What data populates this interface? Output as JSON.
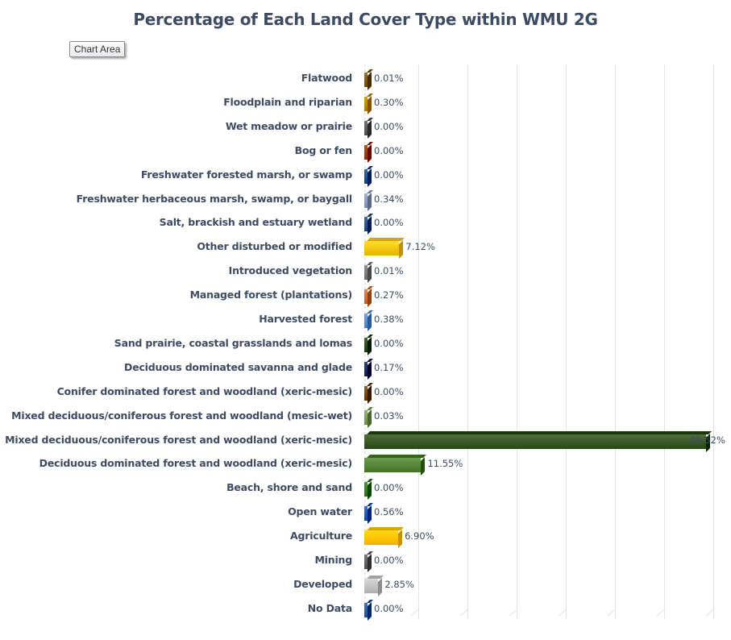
{
  "tooltip": "Chart Area",
  "chart_data": {
    "type": "bar",
    "orientation": "horizontal",
    "style": "3d-clustered-bar",
    "title": "Percentage of Each Land Cover Type within WMU 2G",
    "xlabel": "",
    "ylabel": "",
    "xlim": [
      0,
      70
    ],
    "grid": true,
    "legend": "none",
    "data_labels": true,
    "categories": [
      "Flatwood",
      "Floodplain and riparian",
      "Wet meadow or prairie",
      "Bog or fen",
      "Freshwater forested  marsh, or swamp",
      "Freshwater herbaceous marsh, swamp, or baygall",
      "Salt, brackish and estuary wetland",
      "Other disturbed or modified",
      "Introduced vegetation",
      "Managed forest (plantations)",
      "Harvested forest",
      "Sand prairie, coastal grasslands and lomas",
      "Deciduous dominated savanna and glade",
      "Conifer dominated forest and woodland (xeric-mesic)",
      "Mixed deciduous/coniferous forest and woodland (mesic-wet)",
      "Mixed deciduous/coniferous forest and woodland  (xeric-mesic)",
      "Deciduous dominated forest and woodland (xeric-mesic)",
      "Beach, shore and sand",
      "Open water",
      "Agriculture",
      "Mining",
      "Developed",
      "No Data"
    ],
    "values": [
      0.01,
      0.3,
      0.0,
      0.0,
      0.0,
      0.34,
      0.0,
      7.12,
      0.01,
      0.27,
      0.38,
      0.0,
      0.17,
      0.0,
      0.03,
      69.52,
      11.55,
      0.0,
      0.56,
      6.9,
      0.0,
      2.85,
      0.0
    ],
    "labels": [
      "0.01%",
      "0.30%",
      "0.00%",
      "0.00%",
      "0.00%",
      "0.34%",
      "0.00%",
      "7.12%",
      "0.01%",
      "0.27%",
      "0.38%",
      "0.00%",
      "0.17%",
      "0.00%",
      "0.03%",
      "69.52%",
      "11.55%",
      "0.00%",
      "0.56%",
      "6.90%",
      "0.00%",
      "2.85%",
      "0.00%"
    ],
    "colors": [
      "#7a5a10",
      "#b8860b",
      "#5a5a5a",
      "#9a3a10",
      "#1f4e8c",
      "#8a9ab8",
      "#2f4f8a",
      "#f2c40f",
      "#7a7a7a",
      "#c8703a",
      "#5b8cc8",
      "#2e4a1a",
      "#1a2a5a",
      "#6a4a10",
      "#7a9a60",
      "#375623",
      "#548235",
      "#3a7a2a",
      "#2255b0",
      "#ffc000",
      "#606060",
      "#bfbfbf",
      "#2f5a9a"
    ]
  }
}
